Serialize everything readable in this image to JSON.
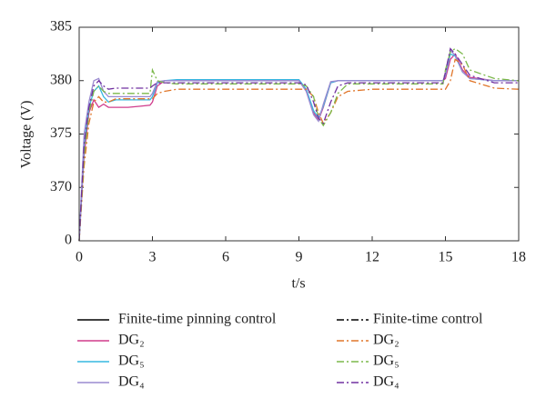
{
  "chart_data": {
    "type": "line",
    "xlabel": "t/s",
    "ylabel": "Voltage (V)",
    "x": [
      0,
      0.2,
      0.4,
      0.6,
      0.8,
      1,
      1.2,
      1.5,
      2,
      2.5,
      2.9,
      3,
      3.2,
      3.5,
      4,
      6,
      8,
      9,
      9.3,
      9.6,
      9.8,
      10,
      10.3,
      10.6,
      11,
      12,
      14,
      14.9,
      15,
      15.2,
      15.4,
      15.7,
      16,
      17,
      18
    ],
    "xlim": [
      0,
      18
    ],
    "xticks": [
      0,
      3,
      6,
      9,
      12,
      15,
      18
    ],
    "ylim": [
      0,
      385
    ],
    "yticks": [
      0,
      370,
      375,
      380,
      385
    ],
    "legend_groups": [
      {
        "name": "Finite-time pinning control",
        "color": "#000000",
        "dash": "solid"
      },
      {
        "name": "Finite-time control",
        "color": "#000000",
        "dash": "dashdot"
      }
    ],
    "series": [
      {
        "name": "DG₂",
        "color": "#d03c8c",
        "dash": "solid",
        "values": [
          0,
          373,
          377,
          378.2,
          377.5,
          377.8,
          377.5,
          377.5,
          377.5,
          377.6,
          377.7,
          378,
          379.5,
          380,
          380,
          380,
          380,
          380,
          379,
          377,
          376.3,
          377.5,
          379.8,
          380,
          380,
          380,
          380,
          380,
          380.2,
          382,
          382.5,
          381,
          380.3,
          380,
          380
        ]
      },
      {
        "name": "DG₅",
        "color": "#36b8e0",
        "dash": "solid",
        "values": [
          0,
          374,
          377.5,
          379,
          379.5,
          378.5,
          378,
          378.2,
          378.2,
          378.2,
          378.2,
          378.5,
          379.8,
          380,
          380.1,
          380.1,
          380.1,
          380.1,
          379.2,
          377.2,
          376.5,
          377.6,
          379.8,
          380,
          380,
          380,
          380,
          380,
          380.5,
          382.5,
          382.3,
          380.8,
          380.2,
          380,
          380
        ]
      },
      {
        "name": "DG₄",
        "color": "#9a8ad0",
        "dash": "solid",
        "values": [
          0,
          375,
          378,
          380,
          380.2,
          379,
          378.5,
          378.5,
          378.5,
          378.5,
          378.5,
          378.8,
          379.9,
          380,
          380,
          380,
          380,
          380,
          379,
          376.8,
          376.2,
          377.8,
          379.9,
          380,
          380,
          380,
          380,
          380,
          380.6,
          382.8,
          382.4,
          380.8,
          380.2,
          380,
          380
        ]
      },
      {
        "name": "DG₂",
        "color": "#e0762a",
        "dash": "dashdot",
        "values": [
          0,
          372,
          376,
          378,
          378.5,
          378,
          378,
          378.3,
          378.3,
          378.3,
          378.3,
          378.3,
          378.8,
          379,
          379.2,
          379.2,
          379.2,
          379.2,
          379.2,
          378.5,
          377,
          376,
          377,
          378.5,
          379,
          379.2,
          379.2,
          379.2,
          379.2,
          380,
          382,
          381.5,
          380,
          379.3,
          379.2
        ]
      },
      {
        "name": "DG₅",
        "color": "#7bb84a",
        "dash": "dashdot",
        "values": [
          0,
          373,
          377,
          379,
          379.5,
          379,
          378.8,
          378.8,
          378.8,
          378.8,
          378.8,
          381,
          380,
          379.8,
          379.7,
          379.7,
          379.7,
          379.7,
          379.5,
          378.5,
          376.5,
          375.8,
          377,
          378.8,
          379.7,
          379.7,
          379.7,
          379.7,
          381,
          382.7,
          383,
          382.5,
          381,
          380.2,
          380
        ]
      },
      {
        "name": "DG₄",
        "color": "#7030a0",
        "dash": "dashdot",
        "values": [
          0,
          374,
          377.5,
          379.5,
          380,
          379.5,
          379.2,
          379.3,
          379.3,
          379.3,
          379.3,
          379.5,
          379.8,
          379.8,
          379.8,
          379.8,
          379.8,
          379.8,
          379.6,
          378,
          376.5,
          376,
          378,
          379.5,
          379.8,
          379.8,
          379.8,
          379.8,
          380.8,
          383,
          382.5,
          381.5,
          380.5,
          379.8,
          379.8
        ]
      }
    ]
  }
}
